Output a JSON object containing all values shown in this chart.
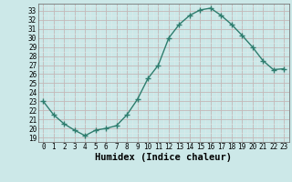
{
  "xlabel": "Humidex (Indice chaleur)",
  "x": [
    0,
    1,
    2,
    3,
    4,
    5,
    6,
    7,
    8,
    9,
    10,
    11,
    12,
    13,
    14,
    15,
    16,
    17,
    18,
    19,
    20,
    21,
    22,
    23
  ],
  "y": [
    23.0,
    21.5,
    20.5,
    19.8,
    19.2,
    19.8,
    20.0,
    20.3,
    21.5,
    23.2,
    25.5,
    27.0,
    30.0,
    31.5,
    32.5,
    33.1,
    33.3,
    32.5,
    31.5,
    30.3,
    29.0,
    27.5,
    26.5,
    26.6
  ],
  "ylim": [
    18.5,
    33.8
  ],
  "xlim": [
    -0.5,
    23.5
  ],
  "yticks": [
    19,
    20,
    21,
    22,
    23,
    24,
    25,
    26,
    27,
    28,
    29,
    30,
    31,
    32,
    33
  ],
  "xticks": [
    0,
    1,
    2,
    3,
    4,
    5,
    6,
    7,
    8,
    9,
    10,
    11,
    12,
    13,
    14,
    15,
    16,
    17,
    18,
    19,
    20,
    21,
    22,
    23
  ],
  "line_color": "#2e7d6e",
  "marker": "+",
  "marker_size": 4,
  "marker_lw": 1.0,
  "line_width": 1.0,
  "bg_color": "#cce8e8",
  "major_grid_color": "#c4b8b8",
  "minor_grid_color": "#ddeaea",
  "tick_fontsize": 5.5,
  "label_fontsize": 7.5
}
